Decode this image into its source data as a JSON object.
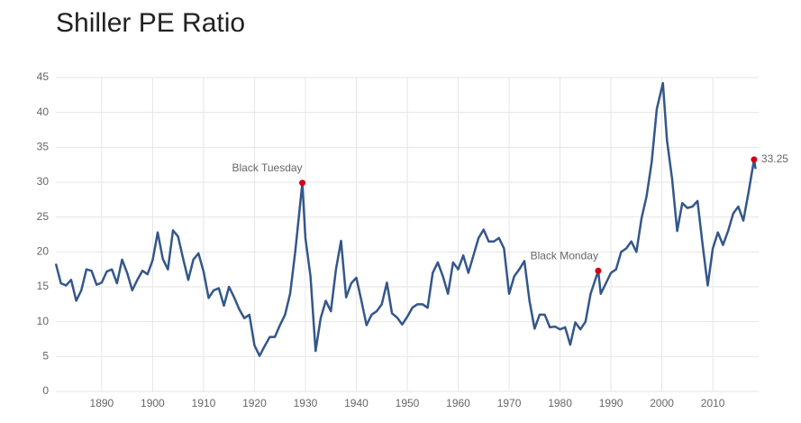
{
  "chart_data": {
    "type": "line",
    "title": "Shiller PE Ratio",
    "x": [
      1881,
      1882,
      1883,
      1884,
      1885,
      1886,
      1887,
      1888,
      1889,
      1890,
      1891,
      1892,
      1893,
      1894,
      1895,
      1896,
      1897,
      1898,
      1899,
      1900,
      1901,
      1902,
      1903,
      1904,
      1905,
      1906,
      1907,
      1908,
      1909,
      1910,
      1911,
      1912,
      1913,
      1914,
      1915,
      1916,
      1917,
      1918,
      1919,
      1920,
      1921,
      1922,
      1923,
      1924,
      1925,
      1926,
      1927,
      1928,
      1929.4,
      1930,
      1931,
      1932,
      1933,
      1934,
      1935,
      1936,
      1937,
      1938,
      1939,
      1940,
      1941,
      1942,
      1943,
      1944,
      1945,
      1946,
      1947,
      1948,
      1949,
      1950,
      1951,
      1952,
      1953,
      1954,
      1955,
      1956,
      1957,
      1958,
      1959,
      1960,
      1961,
      1962,
      1963,
      1964,
      1965,
      1966,
      1967,
      1968,
      1969,
      1970,
      1971,
      1972,
      1973,
      1974,
      1975,
      1976,
      1977,
      1978,
      1979,
      1980,
      1981,
      1982,
      1983,
      1984,
      1985,
      1986,
      1987.5,
      1988,
      1989,
      1990,
      1991,
      1992,
      1993,
      1994,
      1995,
      1996,
      1997,
      1998,
      1999,
      2000.2,
      2001,
      2002,
      2003,
      2004,
      2005,
      2006,
      2007,
      2008,
      2009,
      2010,
      2011,
      2012,
      2013,
      2014,
      2015,
      2016,
      2017,
      2018.1,
      2018.4
    ],
    "values": [
      18.3,
      15.5,
      15.2,
      16.0,
      13.0,
      14.5,
      17.5,
      17.3,
      15.3,
      15.6,
      17.2,
      17.5,
      15.5,
      18.9,
      17.0,
      14.5,
      16.0,
      17.3,
      16.8,
      18.8,
      22.8,
      19.0,
      17.5,
      23.1,
      22.2,
      19.0,
      16.0,
      18.9,
      19.8,
      17.2,
      13.4,
      14.5,
      14.8,
      12.3,
      15.0,
      13.5,
      11.8,
      10.5,
      11.0,
      6.6,
      5.1,
      6.5,
      7.8,
      7.8,
      9.5,
      11.0,
      14.0,
      20.0,
      29.9,
      22.0,
      16.5,
      5.8,
      10.5,
      13.0,
      11.5,
      17.5,
      21.6,
      13.5,
      15.5,
      16.3,
      13.0,
      9.5,
      11.0,
      11.5,
      12.5,
      15.6,
      11.2,
      10.6,
      9.6,
      10.7,
      12.0,
      12.5,
      12.5,
      12.0,
      17.0,
      18.5,
      16.5,
      14.0,
      18.5,
      17.5,
      19.5,
      17.0,
      19.5,
      22.0,
      23.2,
      21.5,
      21.5,
      22.0,
      20.5,
      14.0,
      16.5,
      17.5,
      18.7,
      13.0,
      9.0,
      11.0,
      11.0,
      9.2,
      9.3,
      8.9,
      9.2,
      6.7,
      9.9,
      8.9,
      10.0,
      14.0,
      17.3,
      14.0,
      15.5,
      17.0,
      17.5,
      20.0,
      20.5,
      21.5,
      20.0,
      24.8,
      28.0,
      32.9,
      40.5,
      44.2,
      36.0,
      30.5,
      23.0,
      27.0,
      26.3,
      26.5,
      27.3,
      21.0,
      15.2,
      20.5,
      22.8,
      21.0,
      23.0,
      25.5,
      26.5,
      24.5,
      28.5,
      33.25,
      31.9
    ],
    "color": "#34578a",
    "annotations": [
      {
        "text": "Black Tuesday",
        "x": 1929.4,
        "y": 29.9
      },
      {
        "text": "Black Monday",
        "x": 1987.5,
        "y": 17.3
      },
      {
        "x": 2018.1,
        "y": 33.25
      }
    ],
    "marker_color": "#d0021b",
    "xlim": [
      1881,
      2019
    ],
    "xticks": [
      1890,
      1900,
      1910,
      1920,
      1930,
      1940,
      1950,
      1960,
      1970,
      1980,
      1990,
      2000,
      2010
    ],
    "ylim": [
      0,
      45
    ],
    "yticks": [
      0,
      5,
      10,
      15,
      20,
      25,
      30,
      35,
      40,
      45
    ],
    "grid": true
  }
}
